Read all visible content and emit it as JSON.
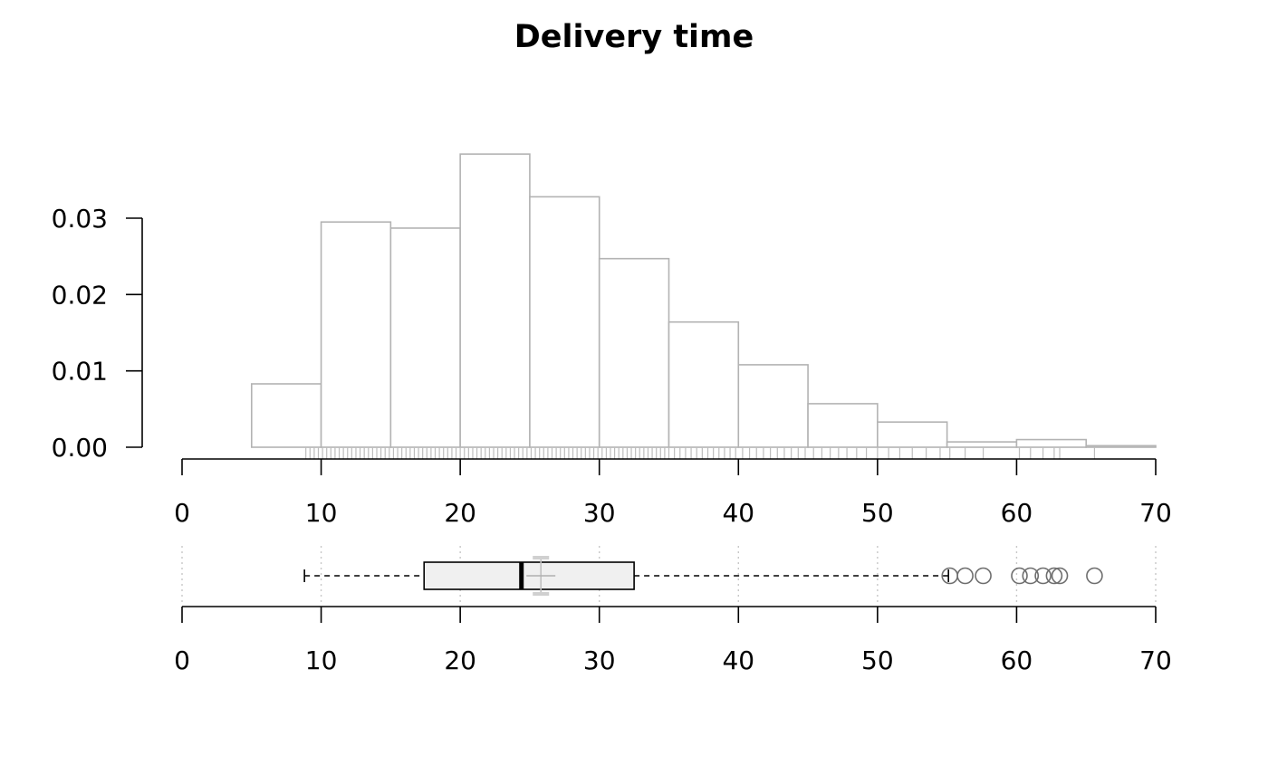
{
  "chart_data": [
    {
      "type": "histogram",
      "title": "Delivery time",
      "xlabel": "",
      "ylabel": "",
      "xlim": [
        0,
        70
      ],
      "ylim": [
        0,
        0.03
      ],
      "x_ticks": [
        "0",
        "10",
        "20",
        "30",
        "40",
        "50",
        "60",
        "70"
      ],
      "x_tick_values": [
        0,
        10,
        20,
        30,
        40,
        50,
        60,
        70
      ],
      "y_ticks": [
        "0.00",
        "0.01",
        "0.02",
        "0.03"
      ],
      "y_tick_values": [
        0,
        0.01,
        0.02,
        0.03
      ],
      "bins": [
        {
          "start": 5,
          "end": 10,
          "density": 0.0083
        },
        {
          "start": 10,
          "end": 15,
          "density": 0.0295
        },
        {
          "start": 15,
          "end": 20,
          "density": 0.0287
        },
        {
          "start": 20,
          "end": 25,
          "density": 0.0384
        },
        {
          "start": 25,
          "end": 30,
          "density": 0.0328
        },
        {
          "start": 30,
          "end": 35,
          "density": 0.0247
        },
        {
          "start": 35,
          "end": 40,
          "density": 0.0164
        },
        {
          "start": 40,
          "end": 45,
          "density": 0.0108
        },
        {
          "start": 45,
          "end": 50,
          "density": 0.0057
        },
        {
          "start": 50,
          "end": 55,
          "density": 0.0033
        },
        {
          "start": 55,
          "end": 60,
          "density": 0.0007
        },
        {
          "start": 60,
          "end": 65,
          "density": 0.001
        },
        {
          "start": 65,
          "end": 70,
          "density": 0.0002
        }
      ],
      "rug": [
        8.9,
        9.2,
        9.5,
        9.8,
        10.1,
        10.4,
        10.7,
        11.0,
        11.3,
        11.6,
        11.9,
        12.2,
        12.5,
        12.8,
        13.1,
        13.4,
        13.7,
        14.0,
        14.3,
        14.6,
        14.9,
        15.2,
        15.5,
        15.8,
        16.1,
        16.4,
        16.7,
        17.0,
        17.3,
        17.6,
        17.9,
        18.2,
        18.5,
        18.8,
        19.1,
        19.4,
        19.7,
        20.0,
        20.3,
        20.6,
        20.9,
        21.2,
        21.5,
        21.8,
        22.1,
        22.4,
        22.7,
        23.0,
        23.3,
        23.6,
        23.9,
        24.2,
        24.5,
        24.8,
        25.1,
        25.4,
        25.7,
        26.0,
        26.3,
        26.6,
        26.9,
        27.2,
        27.5,
        27.8,
        28.1,
        28.4,
        28.7,
        29.0,
        29.3,
        29.6,
        29.9,
        30.2,
        30.5,
        30.8,
        31.1,
        31.4,
        31.7,
        32.0,
        32.3,
        32.6,
        32.9,
        33.2,
        33.5,
        33.8,
        34.1,
        34.4,
        34.7,
        35.0,
        35.4,
        35.8,
        36.2,
        36.6,
        37.0,
        37.4,
        37.8,
        38.2,
        38.6,
        39.0,
        39.4,
        39.8,
        40.3,
        40.8,
        41.3,
        41.8,
        42.3,
        42.8,
        43.3,
        43.8,
        44.3,
        44.8,
        45.4,
        46.0,
        46.6,
        47.2,
        47.8,
        48.5,
        49.2,
        50.0,
        50.8,
        51.6,
        52.5,
        53.5,
        54.5,
        55.2,
        56.3,
        57.6,
        60.2,
        61.0,
        61.9,
        62.7,
        63.1,
        65.6
      ]
    },
    {
      "type": "boxplot",
      "xlim": [
        0,
        70
      ],
      "x_ticks": [
        "0",
        "10",
        "20",
        "30",
        "40",
        "50",
        "60",
        "70"
      ],
      "x_tick_values": [
        0,
        10,
        20,
        30,
        40,
        50,
        60,
        70
      ],
      "whisker_low": 8.8,
      "q1": 17.4,
      "median": 24.4,
      "q3": 32.5,
      "whisker_high": 55.1,
      "mean": 25.8,
      "outliers": [
        55.2,
        56.3,
        57.6,
        60.2,
        61.0,
        61.9,
        62.7,
        63.1,
        65.6
      ]
    }
  ]
}
